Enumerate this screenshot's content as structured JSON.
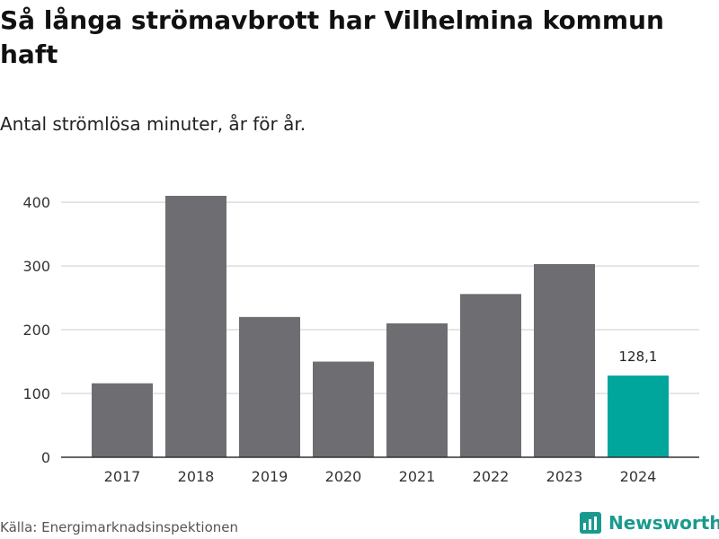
{
  "header": {
    "title": "Så långa strömavbrott har Vilhelmina kommun haft",
    "subtitle": "Antal strömlösa minuter, år för år."
  },
  "footer": {
    "source": "Källa: Energimarknadsinspektionen",
    "brand": "Newsworthy"
  },
  "colors": {
    "bar": "#6e6d71",
    "highlight": "#00a69c",
    "grid": "#dddddd",
    "axis": "#333333",
    "brand": "#1a9a8e"
  },
  "chart_data": {
    "type": "bar",
    "title": "Så långa strömavbrott har Vilhelmina kommun haft",
    "subtitle": "Antal strömlösa minuter, år för år.",
    "xlabel": "",
    "ylabel": "",
    "categories": [
      "2017",
      "2018",
      "2019",
      "2020",
      "2021",
      "2022",
      "2023",
      "2024"
    ],
    "values": [
      116,
      410,
      220,
      150,
      210,
      256,
      303,
      128.1
    ],
    "highlight_index": 7,
    "data_labels": [
      {
        "index": 7,
        "text": "128,1"
      }
    ],
    "ylim": [
      0,
      410
    ],
    "yticks": [
      0,
      100,
      200,
      300,
      400
    ],
    "grid": true
  }
}
